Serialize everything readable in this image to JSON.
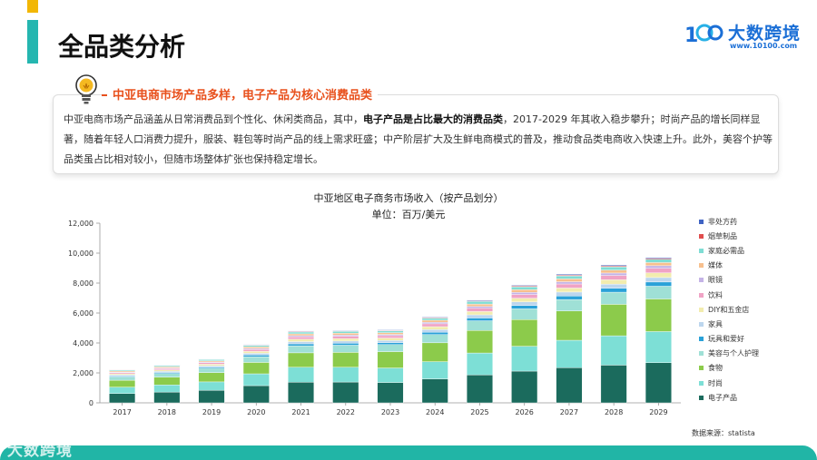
{
  "page": {
    "title": "全品类分析"
  },
  "brand": {
    "name": "大数跨境",
    "url": "www.10100.com",
    "watermark": "大数跨境",
    "color": "#1b6fd6",
    "accent": "#21b5a6"
  },
  "insight": {
    "icon": "lightbulb-icon",
    "heading": "中亚电商市场产品多样，电子产品为核心消费品类",
    "body_before": "中亚电商市场产品涵盖从日常消费品到个性化、休闲类商品，其中，",
    "body_bold": "电子产品是占比最大的消费品类",
    "body_after": "，2017-2029 年其收入稳步攀升；时尚产品的增长同样显著，随着年轻人口消费力提升，服装、鞋包等时尚产品的线上需求旺盛；中产阶层扩大及生鲜电商模式的普及，推动食品类电商收入快速上升。此外，美容个护等品类虽占比相对较小，但随市场整体扩张也保持稳定增长。"
  },
  "source_note": "数据来源：statista",
  "chart_data": {
    "type": "bar",
    "stacked": true,
    "title": "中亚地区电子商务市场收入（按产品划分）",
    "subtitle": "单位：百万/美元",
    "categories": [
      "2017",
      "2018",
      "2019",
      "2020",
      "2021",
      "2022",
      "2023",
      "2024",
      "2025",
      "2026",
      "2027",
      "2028",
      "2029"
    ],
    "ylim": [
      0,
      12000
    ],
    "yticks": [
      0,
      2000,
      4000,
      6000,
      8000,
      10000,
      12000
    ],
    "ytick_labels": [
      "0",
      "2,000",
      "4,000",
      "6,000",
      "8,000",
      "10,000",
      "12,000"
    ],
    "grid": false,
    "legend_position": "right",
    "series": [
      {
        "name": "电子产品",
        "color": "#1b6b5d",
        "values": [
          620,
          720,
          840,
          1150,
          1380,
          1390,
          1360,
          1600,
          1870,
          2120,
          2350,
          2520,
          2680
        ]
      },
      {
        "name": "时尚",
        "color": "#7ddfd6",
        "values": [
          430,
          480,
          560,
          790,
          1000,
          990,
          970,
          1150,
          1460,
          1660,
          1830,
          1960,
          2080
        ]
      },
      {
        "name": "食物",
        "color": "#8ccb4b",
        "values": [
          460,
          510,
          620,
          760,
          960,
          990,
          1090,
          1260,
          1500,
          1780,
          1960,
          2100,
          2180
        ]
      },
      {
        "name": "美容与个人护理",
        "color": "#9fe0d6",
        "values": [
          220,
          250,
          290,
          380,
          470,
          480,
          470,
          550,
          650,
          720,
          760,
          810,
          850
        ]
      },
      {
        "name": "玩具和爱好",
        "color": "#2aa1d8",
        "values": [
          60,
          70,
          80,
          110,
          130,
          130,
          130,
          160,
          190,
          220,
          240,
          260,
          280
        ]
      },
      {
        "name": "家具",
        "color": "#bcd6ee",
        "values": [
          70,
          80,
          90,
          120,
          150,
          150,
          150,
          180,
          210,
          240,
          260,
          280,
          300
        ]
      },
      {
        "name": "DIY和五金店",
        "color": "#f2ecae",
        "values": [
          80,
          90,
          100,
          130,
          160,
          160,
          160,
          190,
          220,
          250,
          270,
          290,
          310
        ]
      },
      {
        "name": "饮料",
        "color": "#f0a3c5",
        "values": [
          80,
          90,
          100,
          130,
          160,
          160,
          160,
          190,
          220,
          250,
          270,
          290,
          310
        ]
      },
      {
        "name": "眼镜",
        "color": "#c4b3e6",
        "values": [
          40,
          45,
          50,
          70,
          80,
          80,
          80,
          100,
          120,
          140,
          150,
          160,
          170
        ]
      },
      {
        "name": "媒体",
        "color": "#f7c08e",
        "values": [
          70,
          75,
          80,
          100,
          120,
          120,
          120,
          140,
          160,
          180,
          190,
          200,
          210
        ]
      },
      {
        "name": "家庭必需品",
        "color": "#7fddd4",
        "values": [
          70,
          75,
          80,
          100,
          120,
          120,
          120,
          140,
          170,
          190,
          200,
          210,
          220
        ]
      },
      {
        "name": "烟草制品",
        "color": "#e04d4d",
        "values": [
          20,
          25,
          25,
          30,
          35,
          35,
          35,
          40,
          45,
          50,
          55,
          60,
          60
        ]
      },
      {
        "name": "非处方药",
        "color": "#3f63c3",
        "values": [
          20,
          25,
          25,
          30,
          35,
          35,
          35,
          40,
          45,
          50,
          55,
          60,
          60
        ]
      }
    ]
  }
}
